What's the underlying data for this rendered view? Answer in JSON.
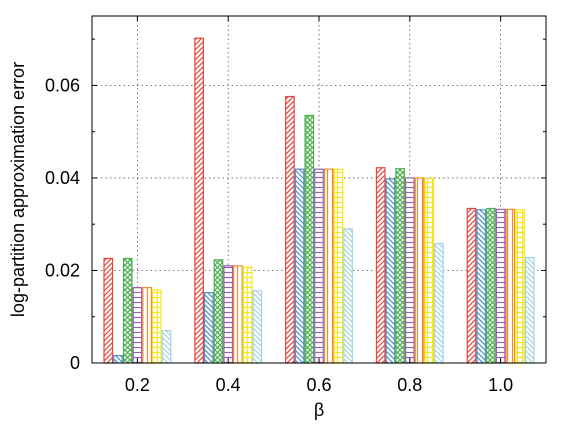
{
  "chart_data": {
    "type": "bar",
    "xlabel": "β",
    "ylabel": "log-partition approximation error",
    "categories": [
      "0.2",
      "0.4",
      "0.6",
      "0.8",
      "1.0"
    ],
    "ylim": [
      0,
      0.075
    ],
    "yticks": [
      0,
      0.02,
      0.04,
      0.06
    ],
    "ytick_labels": [
      "0",
      "0.02",
      "0.04",
      "0.06"
    ],
    "grid": true,
    "series": [
      {
        "color": "#e8453c",
        "pattern": "diag-right",
        "values": [
          0.0226,
          0.0702,
          0.0576,
          0.0422,
          0.0334
        ]
      },
      {
        "color": "#4f8fc8",
        "pattern": "diag-left",
        "values": [
          0.0016,
          0.0152,
          0.0419,
          0.0398,
          0.0331
        ]
      },
      {
        "color": "#4caf50",
        "pattern": "cross",
        "values": [
          0.0226,
          0.0223,
          0.0535,
          0.042,
          0.0334
        ]
      },
      {
        "color": "#9c5fb5",
        "pattern": "horizontal",
        "values": [
          0.0163,
          0.021,
          0.0419,
          0.04,
          0.0332
        ]
      },
      {
        "color": "#f28c28",
        "pattern": "vertical",
        "values": [
          0.0163,
          0.021,
          0.0419,
          0.04,
          0.0332
        ]
      },
      {
        "color": "#f5e623",
        "pattern": "grid",
        "values": [
          0.0158,
          0.0207,
          0.0419,
          0.0399,
          0.0331
        ]
      },
      {
        "color": "#a6d2e6",
        "pattern": "diag-left",
        "values": [
          0.007,
          0.0156,
          0.029,
          0.0258,
          0.0228
        ]
      }
    ]
  }
}
